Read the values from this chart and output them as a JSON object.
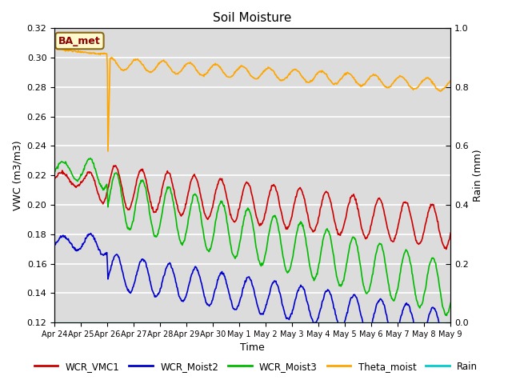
{
  "title": "Soil Moisture",
  "xlabel": "Time",
  "ylabel_left": "VWC (m3/m3)",
  "ylabel_right": "Rain (mm)",
  "ylim_left": [
    0.12,
    0.32
  ],
  "ylim_right": [
    0.0,
    1.0
  ],
  "x_tick_labels": [
    "Apr 24",
    "Apr 25",
    "Apr 26",
    "Apr 27",
    "Apr 28",
    "Apr 29",
    "Apr 30",
    "May 1",
    "May 2",
    "May 3",
    "May 4",
    "May 5",
    "May 6",
    "May 7",
    "May 8",
    "May 9"
  ],
  "annotation_text": "BA_met",
  "annotation_color": "#8B0000",
  "annotation_bg": "#FFFACD",
  "annotation_edge": "#8B6914",
  "bg_color": "#DCDCDC",
  "series_colors": {
    "WCR_VMC1": "#CC0000",
    "WCR_Moist2": "#0000CC",
    "WCR_Moist3": "#00BB00",
    "Theta_moist": "#FFA500",
    "Rain": "#00CCCC"
  },
  "yticks_left": [
    0.12,
    0.14,
    0.16,
    0.18,
    0.2,
    0.22,
    0.24,
    0.26,
    0.28,
    0.3,
    0.32
  ],
  "yticks_right": [
    0.0,
    0.2,
    0.4,
    0.6,
    0.8,
    1.0
  ]
}
